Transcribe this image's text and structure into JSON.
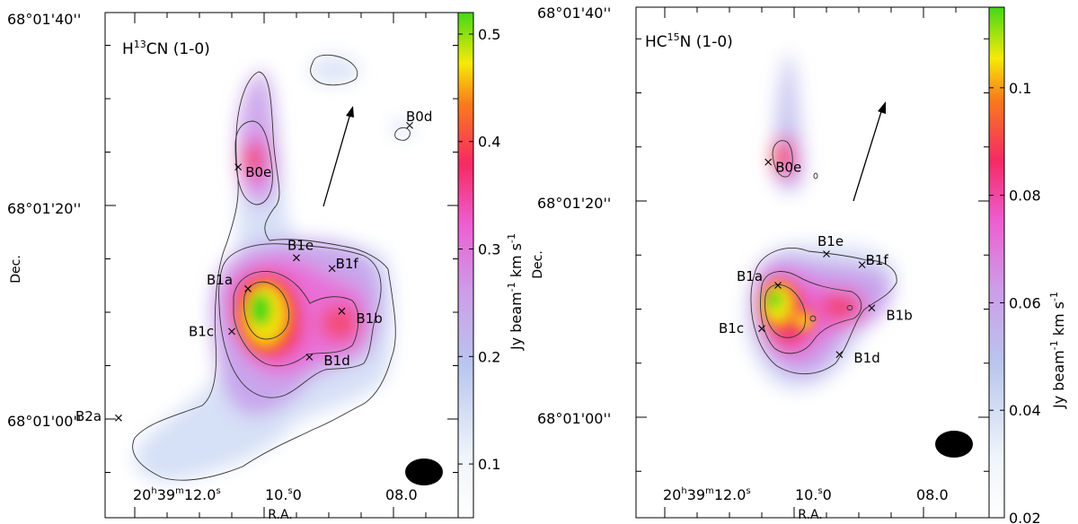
{
  "chart_data": [
    {
      "type": "heatmap",
      "title": "H13CN (1-0)",
      "title_parts": {
        "pre": "H",
        "sup": "13",
        "post": "CN (1-0)"
      },
      "xlabel": "R.A.",
      "ylabel": "Dec.",
      "x_ticks": [
        {
          "label": "20h39m12.0s",
          "parts": [
            "20",
            "h",
            "39",
            "m",
            "12.0",
            "s"
          ],
          "ra_sec": 12.0
        },
        {
          "label": "10.0s",
          "parts": [
            "10.",
            "s",
            "0"
          ],
          "ra_sec": 10.0
        },
        {
          "label": "08.0",
          "parts": [
            "08.0"
          ],
          "ra_sec": 8.0
        }
      ],
      "y_ticks": [
        {
          "label": "68°01'00''",
          "dec_arcsec": 60
        },
        {
          "label": "68°01'20''",
          "dec_arcsec": 80
        },
        {
          "label": "68°01'40''",
          "dec_arcsec": 100
        }
      ],
      "colorbar": {
        "label": "Jy beam-1 km s-1",
        "label_parts": [
          "Jy beam",
          "-1",
          " km s",
          "-1"
        ],
        "range": [
          0.05,
          0.52
        ],
        "ticks": [
          {
            "label": "0.1",
            "value": 0.1
          },
          {
            "label": "0.2",
            "value": 0.2
          },
          {
            "label": "0.3",
            "value": 0.3
          },
          {
            "label": "0.4",
            "value": 0.4
          },
          {
            "label": "0.5",
            "value": 0.5
          }
        ]
      },
      "sources": [
        {
          "name": "B0d",
          "ra_sec": 7.75,
          "dec_arcsec": 87.5
        },
        {
          "name": "B0e",
          "ra_sec": 10.4,
          "dec_arcsec": 83.6
        },
        {
          "name": "B1e",
          "ra_sec": 9.5,
          "dec_arcsec": 75.1
        },
        {
          "name": "B1f",
          "ra_sec": 8.95,
          "dec_arcsec": 74.1
        },
        {
          "name": "B1a",
          "ra_sec": 10.25,
          "dec_arcsec": 72.2
        },
        {
          "name": "B1b",
          "ra_sec": 8.8,
          "dec_arcsec": 70.1
        },
        {
          "name": "B1c",
          "ra_sec": 10.5,
          "dec_arcsec": 68.2
        },
        {
          "name": "B1d",
          "ra_sec": 9.3,
          "dec_arcsec": 65.8
        },
        {
          "name": "B2a",
          "ra_sec": 12.25,
          "dec_arcsec": 60.1
        }
      ]
    },
    {
      "type": "heatmap",
      "title": "HC15N (1-0)",
      "title_parts": {
        "pre": "HC",
        "sup": "15",
        "post": "N (1-0)"
      },
      "xlabel": "R.A.",
      "ylabel": "Dec.",
      "x_ticks": [
        {
          "label": "20h39m12.0s",
          "parts": [
            "20",
            "h",
            "39",
            "m",
            "12.0",
            "s"
          ],
          "ra_sec": 12.0
        },
        {
          "label": "10.0s",
          "parts": [
            "10.",
            "s",
            "0"
          ],
          "ra_sec": 10.0
        },
        {
          "label": "08.0",
          "parts": [
            "08.0"
          ],
          "ra_sec": 8.0
        }
      ],
      "y_ticks": [
        {
          "label": "68°01'00''",
          "dec_arcsec": 60
        },
        {
          "label": "68°01'20''",
          "dec_arcsec": 80
        },
        {
          "label": "68°01'40''",
          "dec_arcsec": 100
        }
      ],
      "colorbar": {
        "label": "Jy beam-1 km s-1",
        "label_parts": [
          "Jy beam",
          "-1",
          " km s",
          "-1"
        ],
        "range": [
          0.02,
          0.115
        ],
        "ticks": [
          {
            "label": "0.02",
            "value": 0.02
          },
          {
            "label": "0.04",
            "value": 0.04
          },
          {
            "label": "0.06",
            "value": 0.06
          },
          {
            "label": "0.08",
            "value": 0.08
          },
          {
            "label": "0.1",
            "value": 0.1
          }
        ]
      },
      "sources": [
        {
          "name": "B0e",
          "ra_sec": 10.4,
          "dec_arcsec": 83.6
        },
        {
          "name": "B1e",
          "ra_sec": 9.5,
          "dec_arcsec": 75.1
        },
        {
          "name": "B1f",
          "ra_sec": 8.95,
          "dec_arcsec": 74.1
        },
        {
          "name": "B1a",
          "ra_sec": 10.25,
          "dec_arcsec": 72.2
        },
        {
          "name": "B1b",
          "ra_sec": 8.8,
          "dec_arcsec": 70.1
        },
        {
          "name": "B1c",
          "ra_sec": 10.5,
          "dec_arcsec": 68.2
        },
        {
          "name": "B1d",
          "ra_sec": 9.3,
          "dec_arcsec": 65.8
        }
      ]
    }
  ]
}
